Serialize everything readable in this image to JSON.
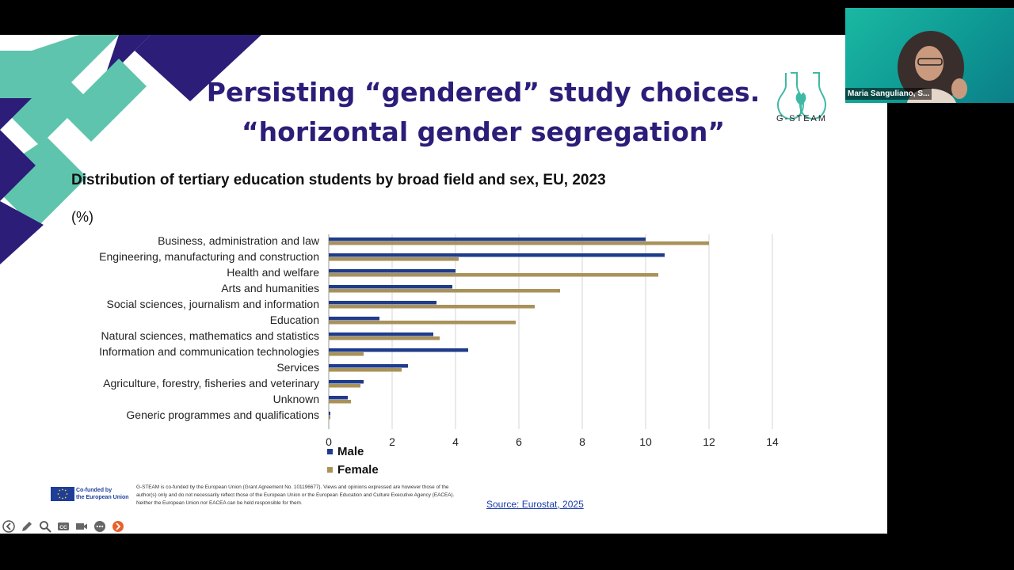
{
  "slide": {
    "title_line1": "Persisting “gendered” study  choices.",
    "title_line2": "“horizontal gender segregation”",
    "logo_text": "G-STEAM",
    "chart_heading": "Distribution of tertiary education students by broad field and sex, EU, 2023",
    "chart_unit": "(%)",
    "eu_badge": {
      "line1": "Co-funded by",
      "line2": "the European Union"
    },
    "disclaimer": "G-STEAM is co-funded by the European Union (Grant Agreement No. 101196677). Views and opinions expressed are however those of the author(s) only and do not necessarily reflect those of the European Union or the European Education and Culture Executive Agency (EACEA). Neither the European Union nor EACEA can be held responsible for them.",
    "source_link": "Source: Eurostat, 2025"
  },
  "chart_data": {
    "type": "bar",
    "orientation": "horizontal",
    "title": "Distribution of tertiary education students by broad field and sex, EU, 2023",
    "unit": "(%)",
    "categories": [
      "Business, administration and law",
      "Engineering, manufacturing and construction",
      "Health and welfare",
      "Arts and humanities",
      "Social sciences, journalism and information",
      "Education",
      "Natural sciences, mathematics and statistics",
      "Information and communication technologies",
      "Services",
      "Agriculture, forestry, fisheries and veterinary",
      "Unknown",
      "Generic programmes and qualifications"
    ],
    "series": [
      {
        "name": "Male",
        "color": "#1f3b8a",
        "values": [
          10.0,
          10.6,
          4.0,
          3.9,
          3.4,
          1.6,
          3.3,
          4.4,
          2.5,
          1.1,
          0.6,
          0.05
        ]
      },
      {
        "name": "Female",
        "color": "#a8925a",
        "values": [
          12.0,
          4.1,
          10.4,
          7.3,
          6.5,
          5.9,
          3.5,
          1.1,
          2.3,
          1.0,
          0.7,
          0.05
        ]
      }
    ],
    "xlim": [
      0,
      14
    ],
    "xticks": [
      0,
      2,
      4,
      6,
      8,
      10,
      12,
      14
    ],
    "grid": "vertical",
    "legend_position": "bottom-left"
  },
  "toolbar": {
    "icons": [
      "back-icon",
      "pen-icon",
      "zoom-icon",
      "captions-icon",
      "video-icon",
      "more-icon",
      "next-icon"
    ]
  },
  "video": {
    "participant_name": "Maria Sanguliano, S..."
  },
  "colors": {
    "title": "#2b1d78",
    "teal": "#5fc4ad",
    "navy": "#2b1d78",
    "male": "#1f3b8a",
    "female": "#a8925a"
  }
}
